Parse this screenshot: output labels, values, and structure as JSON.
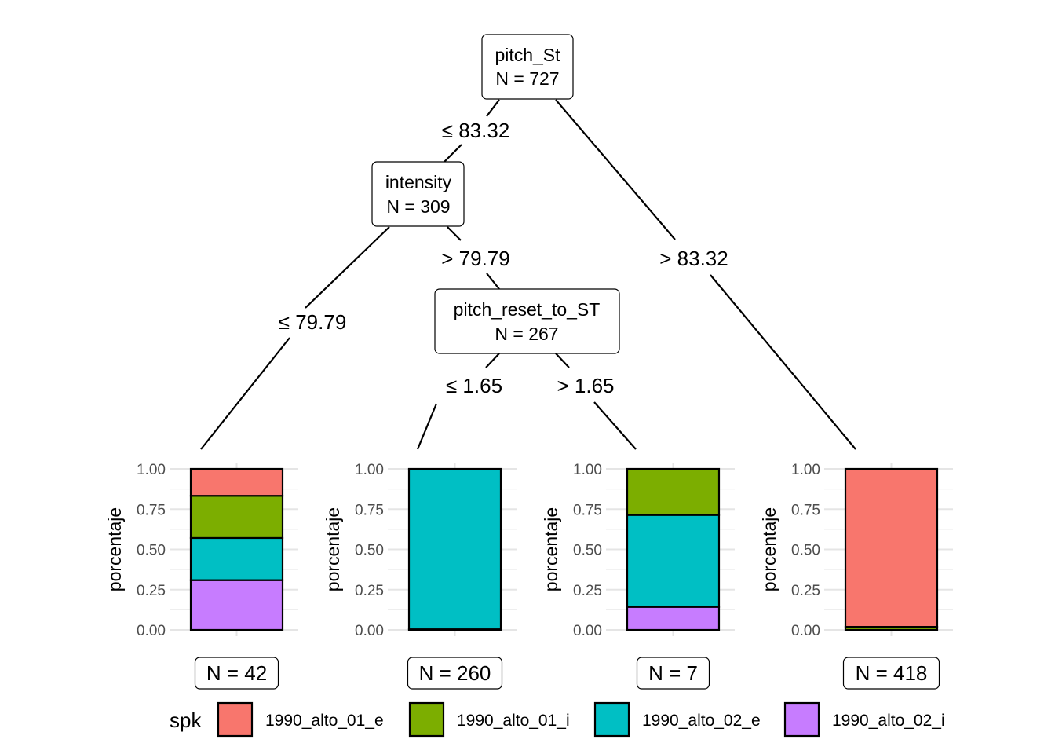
{
  "tree": {
    "inner_nodes": [
      {
        "id": "root",
        "variable": "pitch_St",
        "n_label": "N = 727"
      },
      {
        "id": "intensity",
        "variable": "intensity",
        "n_label": "N = 309"
      },
      {
        "id": "reset",
        "variable": "pitch_reset_to_ST",
        "n_label": "N = 267"
      }
    ],
    "edges": [
      {
        "from": "root",
        "to": "intensity",
        "label": "≤  83.32"
      },
      {
        "from": "root",
        "to": "leaf4",
        "label": ">  83.32"
      },
      {
        "from": "intensity",
        "to": "leaf1",
        "label": "≤  79.79"
      },
      {
        "from": "intensity",
        "to": "reset",
        "label": ">  79.79"
      },
      {
        "from": "reset",
        "to": "leaf2",
        "label": "≤  1.65"
      },
      {
        "from": "reset",
        "to": "leaf3",
        "label": ">  1.65"
      }
    ]
  },
  "chart_data": {
    "type": "bar",
    "stacked": true,
    "ylabel": "porcentaje",
    "ylim": [
      0,
      1
    ],
    "yticks": [
      "0.00",
      "0.25",
      "0.50",
      "0.75",
      "1.00"
    ],
    "grid": true,
    "legend": {
      "title": "spk",
      "position": "bottom",
      "entries": [
        {
          "label": "1990_alto_01_e",
          "color": "#F8766D"
        },
        {
          "label": "1990_alto_01_i",
          "color": "#7CAE00"
        },
        {
          "label": "1990_alto_02_e",
          "color": "#00BFC4"
        },
        {
          "label": "1990_alto_02_i",
          "color": "#C77CFF"
        }
      ]
    },
    "categories": [
      "1990_alto_01_e",
      "1990_alto_01_i",
      "1990_alto_02_e",
      "1990_alto_02_i"
    ],
    "leaves": [
      {
        "id": "leaf1",
        "n_label": "N = 42",
        "values": [
          0.167,
          0.262,
          0.262,
          0.309
        ]
      },
      {
        "id": "leaf2",
        "n_label": "N = 260",
        "values": [
          0.004,
          0.0,
          0.992,
          0.004
        ]
      },
      {
        "id": "leaf3",
        "n_label": "N = 7",
        "values": [
          0.0,
          0.286,
          0.571,
          0.143
        ]
      },
      {
        "id": "leaf4",
        "n_label": "N = 418",
        "values": [
          0.981,
          0.019,
          0.0,
          0.0
        ]
      }
    ]
  }
}
